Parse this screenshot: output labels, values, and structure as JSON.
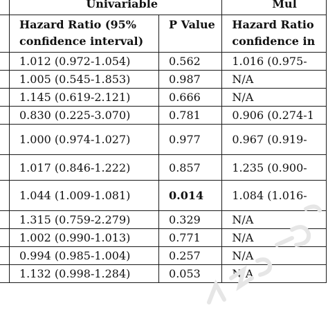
{
  "group_headers": {
    "univariable": "Univariable",
    "multivariable": "Mul"
  },
  "column_headers": {
    "hr_uni_line1": "Hazard Ratio (95%",
    "hr_uni_line2": "confidence interval)",
    "p_uni": "P Value",
    "hr_multi_line1": "Hazard Ratio",
    "hr_multi_line2": "confidence in"
  },
  "rows": [
    {
      "hr_uni": "1.012 (0.972-1.054)",
      "p_uni": "0.562",
      "hr_multi": "1.016 (0.975-"
    },
    {
      "hr_uni": "1.005 (0.545-1.853)",
      "p_uni": "0.987",
      "hr_multi": "N/A"
    },
    {
      "hr_uni": "1.145 (0.619-2.121)",
      "p_uni": "0.666",
      "hr_multi": "N/A"
    },
    {
      "hr_uni": "0.830 (0.225-3.070)",
      "p_uni": "0.781",
      "hr_multi": "0.906 (0.274-1"
    },
    {
      "hr_uni": "1.000 (0.974-1.027)",
      "p_uni": "0.977",
      "hr_multi": "0.967 (0.919-"
    },
    {
      "hr_uni": "1.017 (0.846-1.222)",
      "p_uni": "0.857",
      "hr_multi": "1.235 (0.900-"
    },
    {
      "hr_uni": "1.044 (1.009-1.081)",
      "p_uni": "0.014",
      "hr_multi": "1.084 (1.016-"
    },
    {
      "hr_uni": "1.315 (0.759-2.279)",
      "p_uni": "0.329",
      "hr_multi": "N/A"
    },
    {
      "hr_uni": "1.002 (0.990-1.013)",
      "p_uni": "0.771",
      "hr_multi": "N/A"
    },
    {
      "hr_uni": "0.994 (0.985-1.004)",
      "p_uni": "0.257",
      "hr_multi": "N/A"
    },
    {
      "hr_uni": "1.132 (0.998-1.284)",
      "p_uni": "0.053",
      "hr_multi": "N/A"
    }
  ],
  "bold_p_row": 6,
  "watermark_color": "#e6e6e6"
}
